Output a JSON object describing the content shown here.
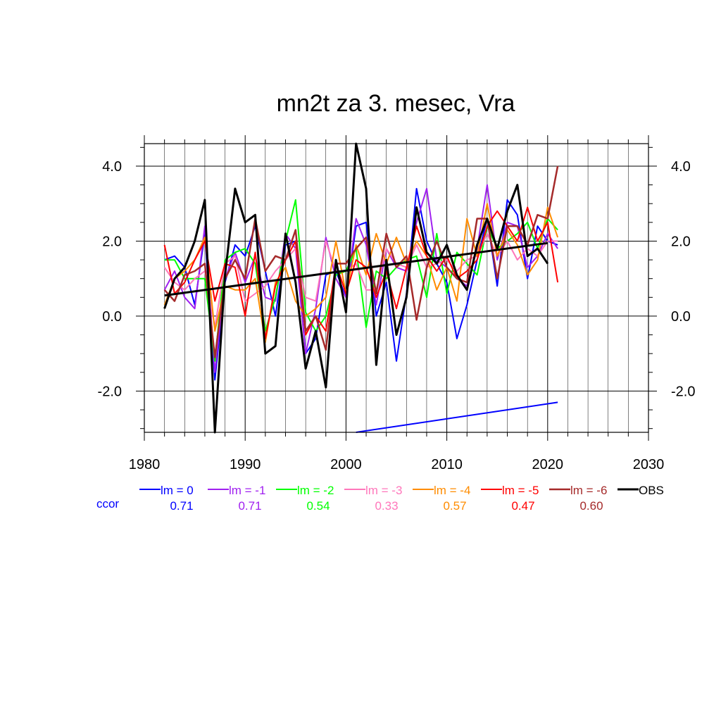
{
  "chart_data": {
    "type": "line",
    "title": "mn2t za 3. mesec, Vra",
    "xlabel": "",
    "ylabel": "",
    "xlim": [
      1980,
      2030
    ],
    "ylim": [
      -3.1,
      4.6
    ],
    "x_ticks": [
      1980,
      1990,
      2000,
      2010,
      2020,
      2030
    ],
    "x_tick_labels": [
      "1980",
      "1990",
      "2000",
      "2010",
      "2020",
      "2030"
    ],
    "y_ticks": [
      -2.0,
      0.0,
      2.0,
      4.0
    ],
    "y_tick_labels": [
      "-2.0",
      "0.0",
      "2.0",
      "4.0"
    ],
    "grid": true,
    "legend_position": "below",
    "ccor_label": "ccor",
    "ccor_color": "#0000ff",
    "x": [
      1982,
      1983,
      1984,
      1985,
      1986,
      1987,
      1988,
      1989,
      1990,
      1991,
      1992,
      1993,
      1994,
      1995,
      1996,
      1997,
      1998,
      1999,
      2000,
      2001,
      2002,
      2003,
      2004,
      2005,
      2006,
      2007,
      2008,
      2009,
      2010,
      2011,
      2012,
      2013,
      2014,
      2015,
      2016,
      2017,
      2018,
      2019,
      2020,
      2021
    ],
    "series": [
      {
        "name": "lm = 0",
        "ccor": "0.71",
        "color": "#0000ff",
        "width": 2,
        "values": [
          1.5,
          1.6,
          1.3,
          0.3,
          2.2,
          -1.7,
          0.9,
          1.9,
          1.6,
          2.4,
          1.2,
          0.0,
          1.9,
          2.0,
          -1.0,
          -0.6,
          1.1,
          1.2,
          0.5,
          2.4,
          2.5,
          0.0,
          0.9,
          -1.2,
          0.6,
          3.4,
          2.0,
          1.4,
          0.9,
          -0.6,
          0.3,
          1.5,
          2.6,
          0.8,
          3.1,
          2.7,
          1.0,
          2.4,
          2.0,
          1.9
        ]
      },
      {
        "name": "lm = -1",
        "ccor": "0.71",
        "color": "#a020f0",
        "width": 2,
        "values": [
          0.7,
          1.2,
          0.5,
          0.2,
          2.4,
          -1.5,
          1.0,
          1.7,
          0.9,
          1.6,
          0.5,
          0.4,
          2.2,
          1.8,
          -1.0,
          0.2,
          2.1,
          1.0,
          0.5,
          2.6,
          1.9,
          0.3,
          1.8,
          1.3,
          1.2,
          2.5,
          3.4,
          1.5,
          1.3,
          1.0,
          0.8,
          1.8,
          3.5,
          1.5,
          2.5,
          2.4,
          1.3,
          1.6,
          2.2,
          1.8
        ]
      },
      {
        "name": "lm = -2",
        "ccor": "0.54",
        "color": "#00ff00",
        "width": 2,
        "values": [
          1.5,
          1.5,
          1.0,
          1.0,
          1.0,
          -1.2,
          1.5,
          1.7,
          1.8,
          1.4,
          -0.4,
          0.5,
          2.0,
          3.1,
          0.1,
          -0.4,
          0.0,
          1.1,
          1.2,
          1.8,
          -0.3,
          1.2,
          1.0,
          1.3,
          1.5,
          1.6,
          0.5,
          2.2,
          0.6,
          1.7,
          1.4,
          1.1,
          2.4,
          1.8,
          2.0,
          2.2,
          2.5,
          1.8,
          2.6,
          2.3
        ]
      },
      {
        "name": "lm = -3",
        "ccor": "0.33",
        "color": "#ff77bb",
        "width": 2,
        "values": [
          1.3,
          0.9,
          0.7,
          1.0,
          1.2,
          -0.3,
          1.4,
          1.6,
          0.4,
          0.6,
          0.8,
          1.2,
          1.5,
          1.8,
          0.5,
          0.4,
          2.0,
          1.2,
          1.2,
          1.4,
          0.7,
          0.7,
          1.8,
          1.4,
          1.3,
          1.9,
          1.3,
          1.4,
          1.5,
          1.2,
          1.5,
          1.6,
          2.2,
          1.6,
          2.0,
          1.5,
          1.8,
          1.6,
          2.0,
          2.0
        ]
      },
      {
        "name": "lm = -4",
        "ccor": "0.57",
        "color": "#ff8c00",
        "width": 2,
        "values": [
          0.3,
          1.0,
          1.2,
          1.5,
          2.1,
          -0.4,
          0.8,
          0.7,
          0.7,
          1.0,
          -0.7,
          0.9,
          1.3,
          0.4,
          0.0,
          0.2,
          0.5,
          2.0,
          0.6,
          1.9,
          1.1,
          2.2,
          1.4,
          2.1,
          1.4,
          2.0,
          1.6,
          0.7,
          1.3,
          0.4,
          2.6,
          1.6,
          3.0,
          1.6,
          2.3,
          1.9,
          1.1,
          1.5,
          2.9,
          2.1
        ]
      },
      {
        "name": "lm = -5",
        "ccor": "0.47",
        "color": "#ff0000",
        "width": 2,
        "values": [
          1.9,
          0.6,
          0.9,
          1.5,
          2.0,
          0.4,
          1.4,
          1.3,
          0.0,
          1.7,
          -0.6,
          0.8,
          1.5,
          2.0,
          -0.5,
          0.0,
          -0.4,
          1.4,
          0.6,
          1.5,
          1.3,
          0.5,
          1.2,
          0.2,
          1.3,
          2.4,
          1.6,
          1.2,
          1.6,
          1.0,
          1.2,
          1.5,
          2.4,
          2.8,
          2.4,
          2.0,
          2.9,
          2.0,
          2.5,
          0.9
        ]
      },
      {
        "name": "lm = -6",
        "ccor": "0.60",
        "color": "#a52a2a",
        "width": 2.5,
        "values": [
          0.7,
          0.4,
          1.1,
          1.2,
          1.4,
          -1.1,
          1.0,
          1.5,
          1.0,
          2.6,
          1.2,
          1.6,
          1.5,
          2.3,
          -0.4,
          0.0,
          -0.9,
          1.4,
          1.4,
          1.8,
          2.1,
          0.6,
          2.2,
          1.3,
          1.6,
          -0.1,
          1.3,
          2.0,
          1.3,
          1.0,
          0.9,
          2.6,
          2.6,
          1.0,
          2.4,
          2.4,
          1.9,
          2.7,
          2.6,
          4.0
        ]
      },
      {
        "name": "OBS",
        "color": "#000000",
        "width": 3,
        "values": [
          0.2,
          1.0,
          1.3,
          2.0,
          3.1,
          -3.1,
          1.1,
          3.4,
          2.5,
          2.7,
          -1.0,
          -0.8,
          2.2,
          0.9,
          -1.4,
          -0.4,
          -1.9,
          1.5,
          0.1,
          4.6,
          3.4,
          -1.3,
          1.5,
          -0.5,
          0.5,
          2.9,
          1.7,
          1.4,
          1.9,
          1.1,
          0.7,
          1.9,
          2.6,
          1.8,
          2.8,
          3.5,
          1.6,
          1.8,
          1.4,
          null
        ]
      }
    ],
    "trend_lines": [
      {
        "color": "#000000",
        "x": [
          1982,
          2020
        ],
        "values": [
          0.55,
          1.95
        ],
        "width": 3
      },
      {
        "color": "#0000ff",
        "x": [
          2001,
          2021
        ],
        "values": [
          -3.1,
          -2.3
        ],
        "width": 2
      }
    ]
  }
}
